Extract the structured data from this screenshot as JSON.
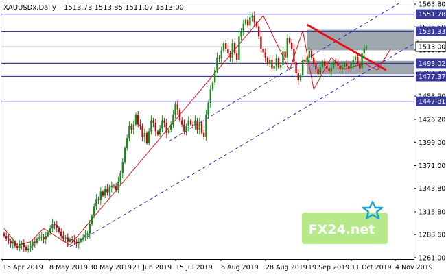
{
  "header": {
    "symbol": "XAUUSDx,Daily",
    "ohlc": "1513.73 1513.85 1511.07 1513.00"
  },
  "watermark": {
    "text": "FX24.net"
  },
  "colors": {
    "bull": "#1a8a1a",
    "bear": "#b01010",
    "level_line": "#3a3a9e",
    "trend_line": "#e81010",
    "channel": "#1010cc",
    "zone": "#5e6a78",
    "watermark_green": "#7cd62a",
    "star": "#1a9fd8"
  },
  "chart_data": {
    "type": "candlestick",
    "title": "XAUUSDx,Daily",
    "ylim": [
      1259.3,
      1567.0
    ],
    "yticks": [
      {
        "value": 1563.8,
        "label": "1563.80"
      },
      {
        "value": 1536.5,
        "label": "1536.50"
      },
      {
        "value": 1508.9,
        "label": "1508.90"
      },
      {
        "value": 1481.4,
        "label": "1481.40"
      },
      {
        "value": 1453.9,
        "label": "1453.90"
      },
      {
        "value": 1426.2,
        "label": "1426.20"
      },
      {
        "value": 1399.0,
        "label": "1399.00"
      },
      {
        "value": 1371.0,
        "label": "1371.00"
      },
      {
        "value": 1343.8,
        "label": "1343.80"
      },
      {
        "value": 1315.8,
        "label": "1315.80"
      },
      {
        "value": 1288.6,
        "label": "1288.60"
      },
      {
        "value": 1261.0,
        "label": "1261.00"
      }
    ],
    "xticks": [
      "15 Apr 2019",
      "8 May 2019",
      "30 May 2019",
      "21 Jun 2019",
      "15 Jul 2019",
      "6 Aug 2019",
      "28 Aug 2019",
      "19 Sep 2019",
      "11 Oct 2019",
      "4 Nov 2019"
    ],
    "price_levels": [
      {
        "value": 1551.78,
        "label": "1551.78"
      },
      {
        "value": 1531.33,
        "label": "1531.33"
      },
      {
        "value": 1493.02,
        "label": "1493.02"
      },
      {
        "value": 1477.37,
        "label": "1477.37"
      },
      {
        "value": 1447.81,
        "label": "1447.81"
      }
    ],
    "current_price": {
      "value": 1513.0,
      "label": "1513.00"
    },
    "zones": [
      {
        "from": 1508.5,
        "to": 1533.0
      },
      {
        "from": 1480.0,
        "to": 1496.0
      }
    ],
    "closes": [
      1287,
      1284,
      1281,
      1278,
      1280,
      1275,
      1273,
      1276,
      1278,
      1274,
      1270,
      1272,
      1275,
      1280,
      1279,
      1284,
      1285,
      1286,
      1283,
      1287,
      1291,
      1296,
      1301,
      1300,
      1297,
      1292,
      1287,
      1284,
      1285,
      1280,
      1283,
      1282,
      1280,
      1278,
      1280,
      1283,
      1285,
      1288,
      1290,
      1301,
      1311,
      1322,
      1331,
      1330,
      1340,
      1335,
      1343,
      1339,
      1345,
      1347,
      1346,
      1342,
      1352,
      1362,
      1375,
      1392,
      1404,
      1418,
      1414,
      1420,
      1432,
      1420,
      1418,
      1405,
      1410,
      1398,
      1412,
      1425,
      1422,
      1412,
      1408,
      1415,
      1425,
      1422,
      1410,
      1414,
      1420,
      1432,
      1444,
      1438,
      1425,
      1420,
      1412,
      1418,
      1425,
      1420,
      1418,
      1425,
      1414,
      1423,
      1410,
      1405,
      1432,
      1446,
      1462,
      1470,
      1485,
      1500,
      1499,
      1508,
      1517,
      1510,
      1505,
      1500,
      1517,
      1505,
      1497,
      1525,
      1532,
      1540,
      1545,
      1538,
      1548,
      1550,
      1542,
      1537,
      1525,
      1510,
      1506,
      1500,
      1492,
      1497,
      1487,
      1490,
      1499,
      1488,
      1491,
      1507,
      1500,
      1523,
      1518,
      1510,
      1495,
      1481,
      1473,
      1479,
      1497,
      1495,
      1500,
      1508,
      1500,
      1492,
      1486,
      1480,
      1489,
      1495,
      1490,
      1487,
      1483,
      1488,
      1495,
      1493,
      1490,
      1486,
      1489,
      1493,
      1490,
      1487,
      1492,
      1497,
      1501,
      1493,
      1487,
      1505,
      1511,
      1513
    ],
    "trend_lines": [
      {
        "from": [
          138,
          1539.0
        ],
        "to": [
          174,
          1485.0
        ]
      },
      {
        "from": [
          0,
          1296.0
        ],
        "to": [
          6,
          1276.0
        ]
      },
      {
        "from": [
          6,
          1276.0
        ],
        "to": [
          12,
          1280.0
        ]
      },
      {
        "from": [
          12,
          1280.0
        ],
        "to": [
          18,
          1296.0
        ]
      },
      {
        "from": [
          18,
          1296.0
        ],
        "to": [
          30,
          1276.0
        ]
      },
      {
        "from": [
          30,
          1276.0
        ],
        "to": [
          118,
          1550.0
        ]
      },
      {
        "from": [
          118,
          1550.0
        ],
        "to": [
          130,
          1485.0
        ]
      },
      {
        "from": [
          130,
          1485.0
        ],
        "to": [
          136,
          1532.0
        ]
      },
      {
        "from": [
          136,
          1532.0
        ],
        "to": [
          141,
          1462.0
        ]
      },
      {
        "from": [
          141,
          1462.0
        ],
        "to": [
          149,
          1500.0
        ]
      },
      {
        "from": [
          149,
          1500.0
        ],
        "to": [
          155,
          1486.0
        ]
      },
      {
        "from": [
          155,
          1486.0
        ],
        "to": [
          164,
          1493.0
        ]
      },
      {
        "from": [
          164,
          1493.0
        ],
        "to": [
          170,
          1485.0
        ]
      },
      {
        "from": [
          170,
          1485.0
        ],
        "to": [
          176,
          1510.0
        ]
      }
    ],
    "channel_lines": [
      {
        "from": [
          30,
          1274.0
        ],
        "to": [
          190,
          1522.0
        ]
      },
      {
        "from": [
          75,
          1400.0
        ],
        "to": [
          180,
          1565.0
        ]
      }
    ]
  }
}
